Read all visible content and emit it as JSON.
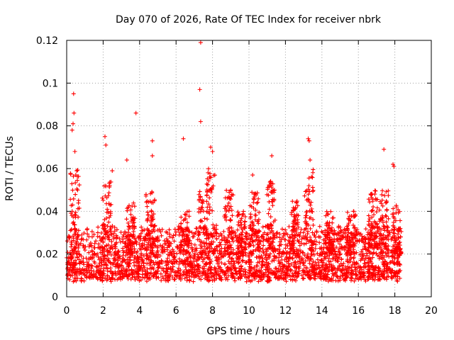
{
  "chart_data": {
    "type": "scatter",
    "title": "Day 070 of 2026, Rate Of TEC Index for receiver nbrk",
    "xlabel": "GPS time / hours",
    "ylabel": "ROTI / TECUs",
    "xlim": [
      0,
      20
    ],
    "ylim": [
      0,
      0.12
    ],
    "xticks": [
      "0",
      "2",
      "4",
      "6",
      "8",
      "10",
      "12",
      "14",
      "16",
      "18",
      "20"
    ],
    "yticks": [
      "0",
      "0.02",
      "0.04",
      "0.06",
      "0.08",
      "0.1",
      "0.12"
    ],
    "grid": true,
    "marker": "+",
    "color": "#ff0000",
    "data_range_hours": [
      0,
      18.35
    ],
    "background_band": [
      0.007,
      0.03
    ],
    "notable_points": [
      {
        "x": 0.38,
        "y": 0.095
      },
      {
        "x": 0.4,
        "y": 0.086
      },
      {
        "x": 0.35,
        "y": 0.081
      },
      {
        "x": 0.3,
        "y": 0.078
      },
      {
        "x": 0.45,
        "y": 0.068
      },
      {
        "x": 0.5,
        "y": 0.057
      },
      {
        "x": 2.1,
        "y": 0.075
      },
      {
        "x": 2.15,
        "y": 0.071
      },
      {
        "x": 2.5,
        "y": 0.059
      },
      {
        "x": 3.3,
        "y": 0.064
      },
      {
        "x": 3.8,
        "y": 0.086
      },
      {
        "x": 4.7,
        "y": 0.073
      },
      {
        "x": 4.7,
        "y": 0.066
      },
      {
        "x": 6.4,
        "y": 0.074
      },
      {
        "x": 7.35,
        "y": 0.119
      },
      {
        "x": 7.3,
        "y": 0.097
      },
      {
        "x": 7.35,
        "y": 0.082
      },
      {
        "x": 7.9,
        "y": 0.07
      },
      {
        "x": 8.0,
        "y": 0.068
      },
      {
        "x": 10.2,
        "y": 0.057
      },
      {
        "x": 11.25,
        "y": 0.066
      },
      {
        "x": 13.25,
        "y": 0.074
      },
      {
        "x": 13.3,
        "y": 0.073
      },
      {
        "x": 13.35,
        "y": 0.064
      },
      {
        "x": 17.4,
        "y": 0.069
      },
      {
        "x": 17.9,
        "y": 0.062
      },
      {
        "x": 17.95,
        "y": 0.061
      }
    ],
    "activity_peaks": [
      {
        "x": 0.45,
        "y": 0.06
      },
      {
        "x": 2.2,
        "y": 0.055
      },
      {
        "x": 3.5,
        "y": 0.045
      },
      {
        "x": 4.6,
        "y": 0.05
      },
      {
        "x": 6.5,
        "y": 0.04
      },
      {
        "x": 7.5,
        "y": 0.05
      },
      {
        "x": 7.9,
        "y": 0.06
      },
      {
        "x": 8.9,
        "y": 0.05
      },
      {
        "x": 9.6,
        "y": 0.04
      },
      {
        "x": 10.3,
        "y": 0.05
      },
      {
        "x": 11.2,
        "y": 0.055
      },
      {
        "x": 12.5,
        "y": 0.045
      },
      {
        "x": 13.3,
        "y": 0.06
      },
      {
        "x": 14.4,
        "y": 0.04
      },
      {
        "x": 15.6,
        "y": 0.04
      },
      {
        "x": 16.8,
        "y": 0.05
      },
      {
        "x": 17.4,
        "y": 0.05
      },
      {
        "x": 18.1,
        "y": 0.045
      }
    ]
  }
}
